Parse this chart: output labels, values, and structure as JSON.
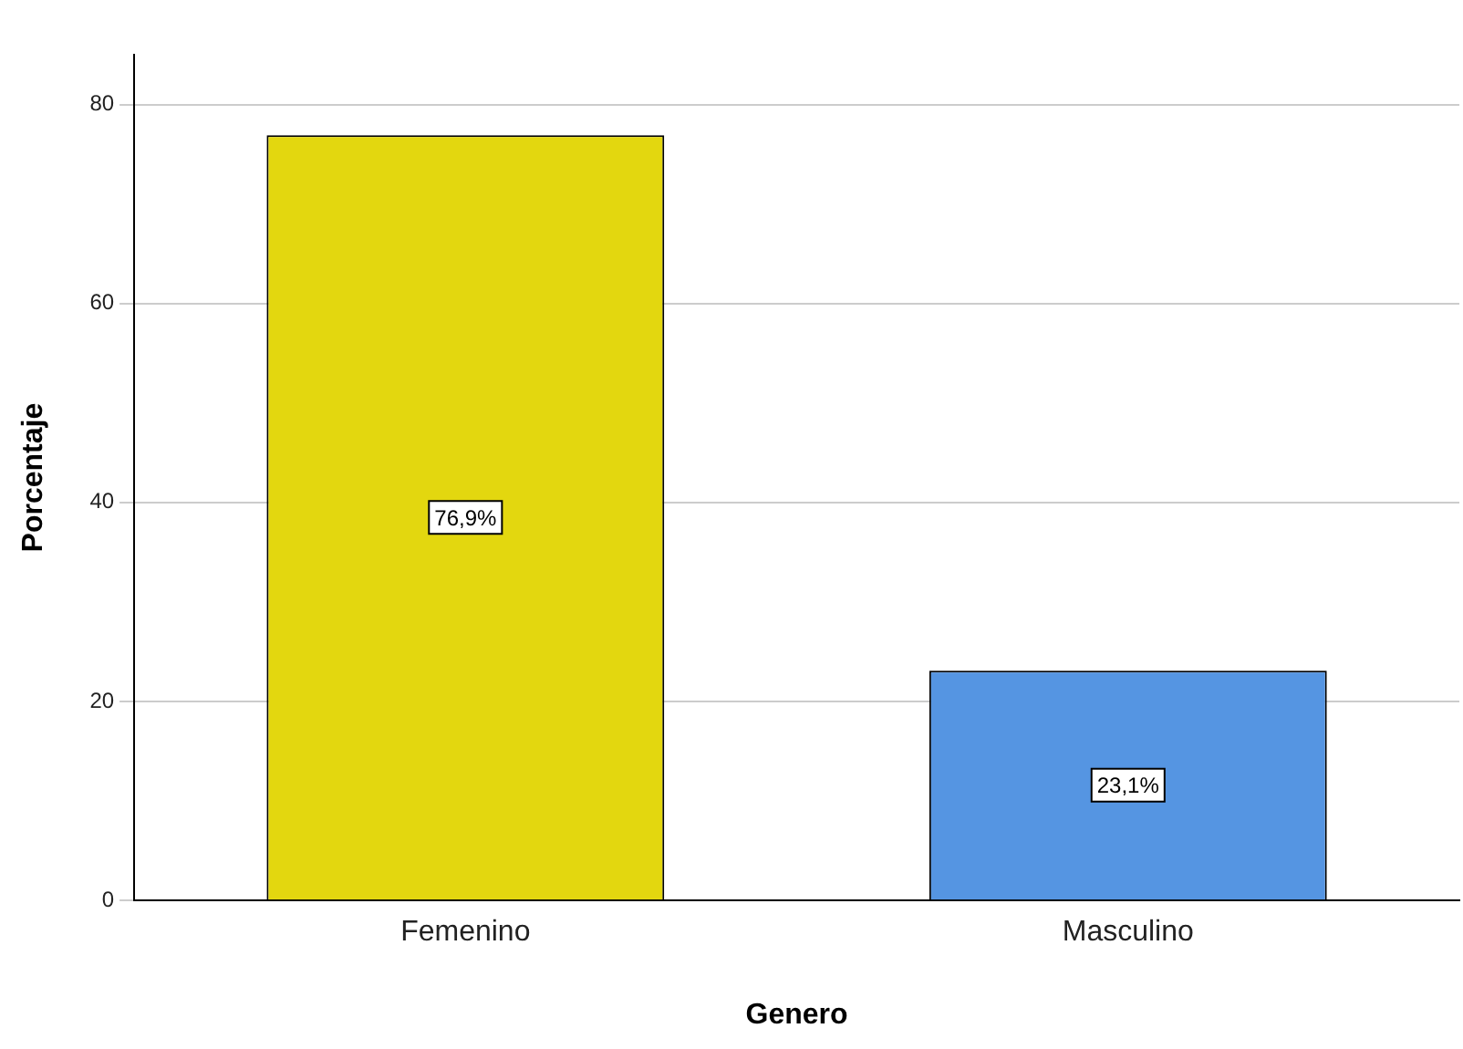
{
  "chart_data": {
    "type": "bar",
    "xlabel": "Genero",
    "ylabel": "Porcentaje",
    "categories": [
      "Femenino",
      "Masculino"
    ],
    "values": [
      76.9,
      23.1
    ],
    "colors": [
      "#e3d70f",
      "#5595e2"
    ],
    "value_labels": [
      "76,9%",
      "23,1%"
    ],
    "ylim": [
      0,
      85
    ],
    "yticks": [
      0,
      20,
      40,
      60,
      80
    ],
    "grid": "y",
    "legend": false
  }
}
